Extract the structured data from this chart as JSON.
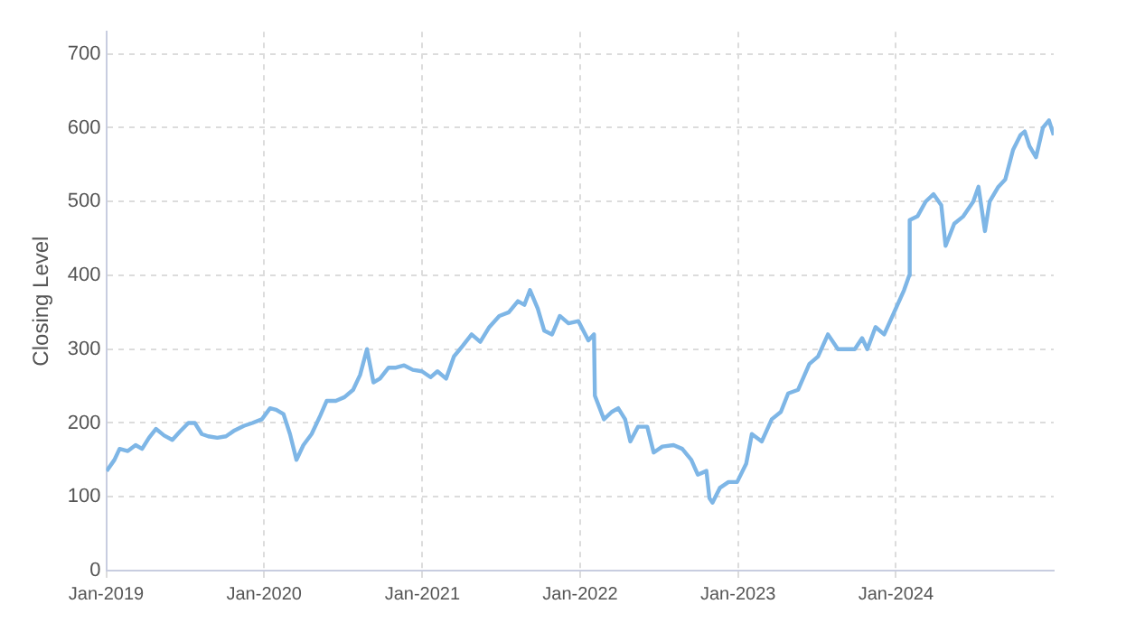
{
  "chart_data": {
    "type": "line",
    "ylabel": "Closing Level",
    "x": [
      "2019-01-02",
      "2019-01-20",
      "2019-02-01",
      "2019-02-20",
      "2019-03-10",
      "2019-03-25",
      "2019-04-10",
      "2019-04-26",
      "2019-05-15",
      "2019-06-03",
      "2019-06-20",
      "2019-07-10",
      "2019-07-25",
      "2019-08-10",
      "2019-08-25",
      "2019-09-15",
      "2019-10-05",
      "2019-10-25",
      "2019-11-15",
      "2019-12-05",
      "2019-12-27",
      "2020-01-15",
      "2020-01-29",
      "2020-02-15",
      "2020-03-01",
      "2020-03-16",
      "2020-04-01",
      "2020-04-20",
      "2020-05-10",
      "2020-05-25",
      "2020-06-15",
      "2020-07-05",
      "2020-07-25",
      "2020-08-10",
      "2020-08-26",
      "2020-09-10",
      "2020-09-25",
      "2020-10-15",
      "2020-11-01",
      "2020-11-20",
      "2020-12-10",
      "2020-12-31",
      "2021-01-20",
      "2021-02-05",
      "2021-02-25",
      "2021-03-15",
      "2021-04-05",
      "2021-04-25",
      "2021-05-15",
      "2021-06-05",
      "2021-06-28",
      "2021-07-20",
      "2021-08-10",
      "2021-08-25",
      "2021-09-07",
      "2021-09-25",
      "2021-10-10",
      "2021-10-28",
      "2021-11-15",
      "2021-12-05",
      "2021-12-28",
      "2022-01-20",
      "2022-02-02",
      "2022-02-04",
      "2022-02-25",
      "2022-03-15",
      "2022-03-30",
      "2022-04-15",
      "2022-04-27",
      "2022-05-15",
      "2022-06-05",
      "2022-06-20",
      "2022-07-10",
      "2022-08-05",
      "2022-08-25",
      "2022-09-15",
      "2022-09-30",
      "2022-10-20",
      "2022-10-27",
      "2022-11-03",
      "2022-11-20",
      "2022-12-10",
      "2022-12-30",
      "2023-01-20",
      "2023-02-02",
      "2023-02-25",
      "2023-03-20",
      "2023-04-10",
      "2023-04-27",
      "2023-05-20",
      "2023-06-15",
      "2023-07-05",
      "2023-07-28",
      "2023-08-20",
      "2023-09-10",
      "2023-09-28",
      "2023-10-15",
      "2023-10-27",
      "2023-11-15",
      "2023-12-05",
      "2023-12-28",
      "2024-01-20",
      "2024-02-01",
      "2024-02-02",
      "2024-02-20",
      "2024-03-10",
      "2024-03-28",
      "2024-04-15",
      "2024-04-25",
      "2024-05-15",
      "2024-06-05",
      "2024-06-28",
      "2024-07-10",
      "2024-07-25",
      "2024-08-05",
      "2024-08-25",
      "2024-09-10",
      "2024-09-28",
      "2024-10-15",
      "2024-10-25",
      "2024-11-05",
      "2024-11-20",
      "2024-12-06",
      "2024-12-20",
      "2024-12-31"
    ],
    "series": [
      {
        "color": "#7eb6e6",
        "values": [
          135,
          150,
          165,
          162,
          170,
          165,
          180,
          192,
          183,
          177,
          188,
          200,
          200,
          185,
          182,
          180,
          182,
          190,
          196,
          200,
          205,
          220,
          218,
          212,
          185,
          150,
          170,
          185,
          210,
          230,
          230,
          235,
          245,
          265,
          300,
          255,
          260,
          275,
          275,
          278,
          272,
          270,
          262,
          270,
          260,
          290,
          305,
          320,
          310,
          330,
          345,
          350,
          365,
          360,
          380,
          355,
          325,
          320,
          345,
          335,
          338,
          312,
          320,
          237,
          205,
          215,
          220,
          205,
          175,
          195,
          195,
          160,
          168,
          170,
          165,
          150,
          130,
          135,
          98,
          92,
          112,
          120,
          120,
          145,
          185,
          175,
          205,
          215,
          240,
          245,
          280,
          290,
          320,
          300,
          300,
          300,
          315,
          300,
          330,
          320,
          350,
          380,
          400,
          475,
          480,
          500,
          510,
          495,
          440,
          470,
          480,
          500,
          520,
          460,
          500,
          520,
          530,
          570,
          590,
          595,
          575,
          560,
          600,
          610,
          590
        ]
      }
    ],
    "xlim": [
      "2019-01-01",
      "2024-12-31"
    ],
    "xticks": [
      {
        "value": "2019-01-01",
        "label": "Jan-2019"
      },
      {
        "value": "2020-01-01",
        "label": "Jan-2020"
      },
      {
        "value": "2021-01-01",
        "label": "Jan-2021"
      },
      {
        "value": "2022-01-01",
        "label": "Jan-2022"
      },
      {
        "value": "2023-01-01",
        "label": "Jan-2023"
      },
      {
        "value": "2024-01-01",
        "label": "Jan-2024"
      }
    ],
    "ylim": [
      0,
      730
    ],
    "yticks": [
      0,
      100,
      200,
      300,
      400,
      500,
      600,
      700
    ],
    "grid": true,
    "legend": false,
    "marker": "none",
    "line_style": "solid"
  }
}
